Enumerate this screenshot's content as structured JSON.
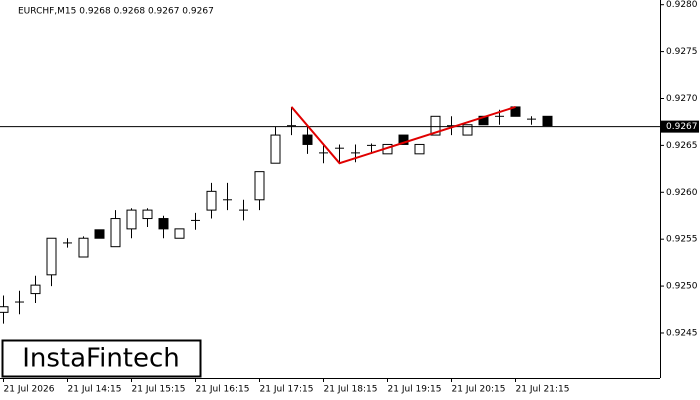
{
  "chart_data": {
    "type": "candlestick",
    "title": "EURCHF,M15  0.9268 0.9268 0.9267 0.9267",
    "brand": "InstaFintech",
    "categories": [
      "21 Jul 2026",
      null,
      null,
      null,
      "21 Jul 14:15",
      null,
      null,
      null,
      "21 Jul 15:15",
      null,
      null,
      null,
      "21 Jul 16:15",
      null,
      null,
      null,
      "21 Jul 17:15",
      null,
      null,
      null,
      "21 Jul 18:15",
      null,
      null,
      null,
      "21 Jul 19:15",
      null,
      null,
      null,
      "21 Jul 20:15",
      null,
      null,
      null,
      "21 Jul 21:15",
      null,
      null
    ],
    "open": [
      0.92472,
      0.92483,
      0.92492,
      0.92512,
      0.92546,
      0.92531,
      0.9256,
      0.92542,
      0.92561,
      0.92572,
      0.92572,
      0.92551,
      0.9257,
      0.92581,
      0.92592,
      0.92581,
      0.92592,
      0.92631,
      0.92671,
      0.92661,
      0.92642,
      0.92647,
      0.92642,
      0.9265,
      0.92641,
      0.92661,
      0.92641,
      0.92661,
      0.92671,
      0.92661,
      0.92681,
      0.92681,
      0.92691,
      0.92678,
      0.92681
    ],
    "high": [
      0.9249,
      0.92495,
      0.92511,
      0.92551,
      0.92551,
      0.92553,
      0.9256,
      0.92581,
      0.92583,
      0.92583,
      0.92575,
      0.92561,
      0.92578,
      0.9261,
      0.9261,
      0.92592,
      0.92622,
      0.9267,
      0.92691,
      0.9267,
      0.92652,
      0.92651,
      0.92651,
      0.92652,
      0.92651,
      0.92661,
      0.92651,
      0.92681,
      0.92681,
      0.92672,
      0.92681,
      0.92688,
      0.92691,
      0.92681,
      0.92681
    ],
    "low": [
      0.9246,
      0.9247,
      0.92482,
      0.925,
      0.92541,
      0.92531,
      0.92551,
      0.92542,
      0.92551,
      0.92563,
      0.92551,
      0.92551,
      0.9256,
      0.92572,
      0.92581,
      0.9257,
      0.92581,
      0.92631,
      0.92661,
      0.92641,
      0.92631,
      0.92631,
      0.92632,
      0.92641,
      0.92641,
      0.92651,
      0.92641,
      0.92661,
      0.92661,
      0.92661,
      0.92672,
      0.92672,
      0.92681,
      0.92672,
      0.92671
    ],
    "close": [
      0.92478,
      0.92483,
      0.92501,
      0.92551,
      0.92546,
      0.92551,
      0.92551,
      0.92572,
      0.92581,
      0.92581,
      0.92561,
      0.92561,
      0.9257,
      0.92601,
      0.92592,
      0.92581,
      0.92622,
      0.92661,
      0.92671,
      0.92651,
      0.92642,
      0.92647,
      0.92642,
      0.9265,
      0.92651,
      0.92651,
      0.92651,
      0.92681,
      0.92671,
      0.92672,
      0.92672,
      0.92681,
      0.92681,
      0.92678,
      0.92671
    ],
    "pattern": {
      "color": "#e00000",
      "index": [
        18,
        21,
        32
      ],
      "price": [
        0.92691,
        0.92631,
        0.92691
      ]
    },
    "current_price": {
      "value": 0.9267,
      "label": "0.9267"
    },
    "ylim": [
      0.92402,
      0.92805
    ],
    "yticks": [
      0.9245,
      {
        "value": 0.925,
        "label": "0.9250"
      },
      0.9255,
      {
        "value": 0.926,
        "label": "0.9260"
      },
      0.9265,
      {
        "value": 0.927,
        "label": "0.9270"
      },
      0.9275,
      {
        "value": 0.928,
        "label": "0.9280"
      }
    ]
  }
}
